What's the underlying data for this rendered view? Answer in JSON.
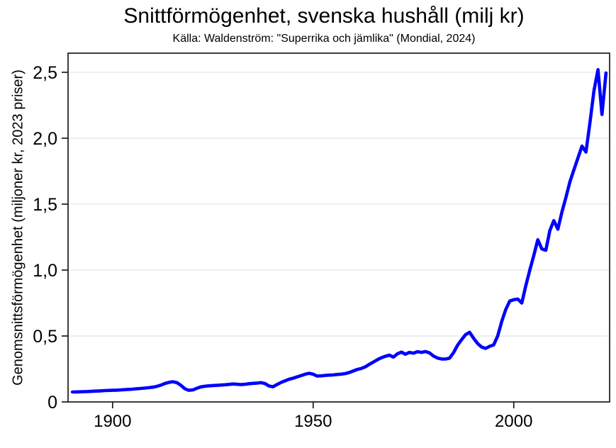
{
  "figure": {
    "title": "Snittförmögenhet, svenska hushåll (milj kr)",
    "subtitle": "Källa: Waldenström: \"Superrika och jämlika\" (Mondial, 2024)",
    "y_axis_title": "Genomsnittsförmögenhet (miljoner kr, 2023 priser)",
    "background_color": "#ffffff"
  },
  "chart_data": {
    "type": "line",
    "title": "Snittförmögenhet, svenska hushåll (milj kr)",
    "subtitle": "Källa: Waldenström: \"Superrika och jämlika\" (Mondial, 2024)",
    "xlabel": "",
    "ylabel": "Genomsnittsförmögenhet (miljoner kr, 2023 priser)",
    "legend": "none",
    "grid": "horizontal",
    "xlim": [
      1888.9,
      2023.9
    ],
    "ylim": [
      0,
      2.645
    ],
    "x_ticks": [
      1900,
      1950,
      2000
    ],
    "x_tick_labels": [
      "1900",
      "1950",
      "2000"
    ],
    "y_ticks": [
      0,
      0.5,
      1.0,
      1.5,
      2.0,
      2.5
    ],
    "y_tick_labels": [
      "0",
      "0,5",
      "1,0",
      "1,5",
      "2,0",
      "2,5"
    ],
    "line_color": "#0000ff",
    "axis_color": "#1a1a1a",
    "grid_color": "#e4e4e6",
    "series": [
      {
        "name": "Snittförmögenhet svenska hushåll",
        "color": "#0000ff",
        "x": [
          1890,
          1891,
          1892,
          1893,
          1894,
          1895,
          1896,
          1897,
          1898,
          1899,
          1900,
          1901,
          1902,
          1903,
          1904,
          1905,
          1906,
          1907,
          1908,
          1909,
          1910,
          1911,
          1912,
          1913,
          1914,
          1915,
          1916,
          1917,
          1918,
          1919,
          1920,
          1921,
          1922,
          1923,
          1924,
          1925,
          1926,
          1927,
          1928,
          1929,
          1930,
          1931,
          1932,
          1933,
          1934,
          1935,
          1936,
          1937,
          1938,
          1939,
          1940,
          1941,
          1942,
          1943,
          1944,
          1945,
          1946,
          1947,
          1948,
          1949,
          1950,
          1951,
          1952,
          1953,
          1954,
          1955,
          1956,
          1957,
          1958,
          1959,
          1960,
          1961,
          1962,
          1963,
          1964,
          1965,
          1966,
          1967,
          1968,
          1969,
          1970,
          1971,
          1972,
          1973,
          1974,
          1975,
          1976,
          1977,
          1978,
          1979,
          1980,
          1981,
          1982,
          1983,
          1984,
          1985,
          1986,
          1987,
          1988,
          1989,
          1990,
          1991,
          1992,
          1993,
          1994,
          1995,
          1996,
          1997,
          1998,
          1999,
          2000,
          2001,
          2002,
          2003,
          2004,
          2005,
          2006,
          2007,
          2008,
          2009,
          2010,
          2011,
          2012,
          2013,
          2014,
          2015,
          2016,
          2017,
          2018,
          2019,
          2020,
          2021,
          2022,
          2023
        ],
        "values": [
          0.075,
          0.076,
          0.077,
          0.078,
          0.079,
          0.081,
          0.082,
          0.084,
          0.086,
          0.087,
          0.088,
          0.089,
          0.091,
          0.093,
          0.095,
          0.097,
          0.1,
          0.102,
          0.105,
          0.108,
          0.112,
          0.118,
          0.127,
          0.139,
          0.148,
          0.153,
          0.147,
          0.127,
          0.1,
          0.088,
          0.091,
          0.104,
          0.114,
          0.119,
          0.122,
          0.124,
          0.126,
          0.128,
          0.13,
          0.133,
          0.136,
          0.134,
          0.131,
          0.134,
          0.138,
          0.141,
          0.143,
          0.146,
          0.139,
          0.121,
          0.115,
          0.132,
          0.148,
          0.16,
          0.172,
          0.18,
          0.19,
          0.2,
          0.21,
          0.217,
          0.21,
          0.196,
          0.198,
          0.201,
          0.203,
          0.205,
          0.208,
          0.211,
          0.215,
          0.223,
          0.235,
          0.246,
          0.254,
          0.266,
          0.285,
          0.302,
          0.32,
          0.335,
          0.346,
          0.355,
          0.34,
          0.365,
          0.378,
          0.362,
          0.376,
          0.37,
          0.381,
          0.376,
          0.382,
          0.372,
          0.348,
          0.333,
          0.326,
          0.325,
          0.332,
          0.374,
          0.43,
          0.472,
          0.51,
          0.528,
          0.482,
          0.443,
          0.416,
          0.406,
          0.422,
          0.432,
          0.5,
          0.61,
          0.7,
          0.765,
          0.775,
          0.78,
          0.75,
          0.88,
          1.0,
          1.11,
          1.23,
          1.16,
          1.15,
          1.3,
          1.375,
          1.31,
          1.44,
          1.55,
          1.67,
          1.76,
          1.85,
          1.94,
          1.895,
          2.12,
          2.36,
          2.52,
          2.18,
          2.495
        ]
      }
    ]
  }
}
